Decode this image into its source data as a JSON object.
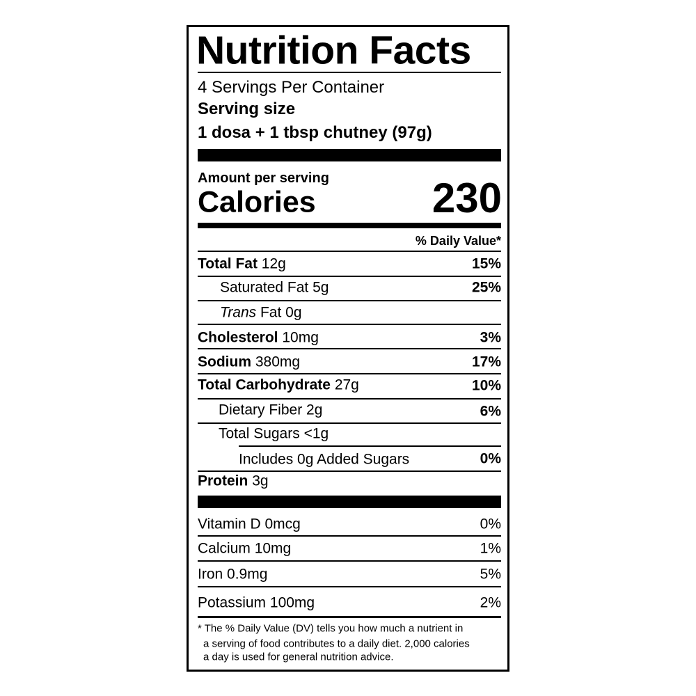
{
  "title": "Nutrition Facts",
  "servings_per_container": "4 Servings Per Container",
  "serving_size_label": "Serving size",
  "serving_size_value": "1 dosa + 1 tbsp chutney (97g)",
  "amount_per_serving": "Amount per serving",
  "calories_label": "Calories",
  "calories_value": "230",
  "daily_value_header": "% Daily Value*",
  "nutrients": [
    {
      "name": "Total Fat",
      "amount": "12g",
      "dv": "15%"
    },
    {
      "name": "Saturated Fat",
      "amount": "5g",
      "dv": "25%"
    },
    {
      "name": "Trans",
      "name_suffix": "Fat",
      "amount": "0g",
      "dv": ""
    },
    {
      "name": "Cholesterol",
      "amount": "10mg",
      "dv": "3%"
    },
    {
      "name": "Sodium",
      "amount": "380mg",
      "dv": "17%"
    },
    {
      "name": "Total Carbohydrate",
      "amount": "27g",
      "dv": "10%"
    },
    {
      "name": "Dietary Fiber",
      "amount": "2g",
      "dv": "6%"
    },
    {
      "name": "Total Sugars",
      "amount": "<1g",
      "dv": ""
    },
    {
      "name": "Includes 0g Added Sugars",
      "amount": "",
      "dv": "0%"
    },
    {
      "name": "Protein",
      "amount": "3g",
      "dv": ""
    }
  ],
  "vitamins": [
    {
      "name": "Vitamin D",
      "amount": "0mcg",
      "dv": "0%"
    },
    {
      "name": "Calcium",
      "amount": "10mg",
      "dv": "1%"
    },
    {
      "name": "Iron",
      "amount": "0.9mg",
      "dv": "5%"
    },
    {
      "name": "Potassium",
      "amount": "100mg",
      "dv": "2%"
    }
  ],
  "footnote": [
    "* The % Daily Value (DV) tells you how much a nutrient in",
    "a serving of food contributes to a daily diet. 2,000 calories",
    "a day is used for general nutrition advice."
  ]
}
